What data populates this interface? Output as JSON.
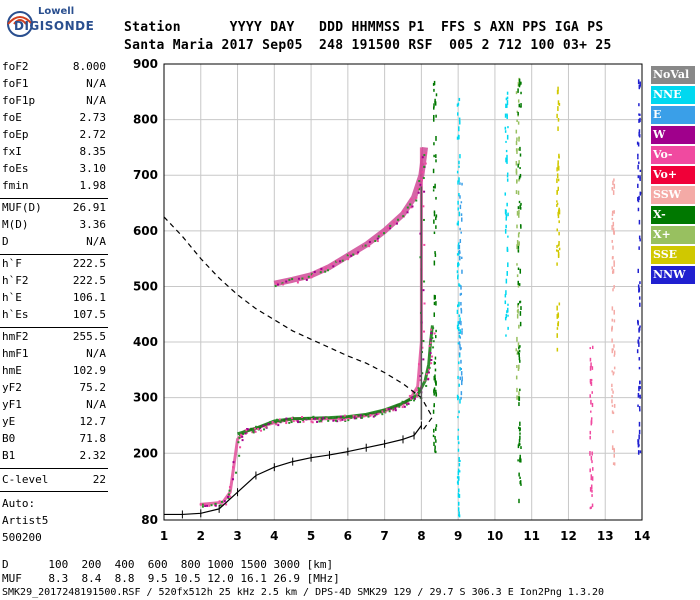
{
  "logo": {
    "brand_top": "Lowell",
    "brand_bottom": "DIGISONDE"
  },
  "header": {
    "row1": "Station      YYYY DAY   DDD HHMMSS P1  FFS S AXN PPS IGA PS",
    "row2": "Santa Maria 2017 Sep05  248 191500 RSF  005 2 712 100 03+ 25"
  },
  "params": {
    "group1": [
      {
        "name": "foF2",
        "value": "8.000"
      },
      {
        "name": "foF1",
        "value": "N/A"
      },
      {
        "name": "foF1p",
        "value": "N/A"
      },
      {
        "name": "foE",
        "value": "2.73"
      },
      {
        "name": "foEp",
        "value": "2.72"
      },
      {
        "name": "fxI",
        "value": "8.35"
      },
      {
        "name": "foEs",
        "value": "3.10"
      },
      {
        "name": "fmin",
        "value": "1.98"
      }
    ],
    "group2": [
      {
        "name": "MUF(D)",
        "value": "26.91"
      },
      {
        "name": "M(D)",
        "value": "3.36"
      },
      {
        "name": "D",
        "value": "N/A"
      }
    ],
    "group3": [
      {
        "name": "h`F",
        "value": "222.5"
      },
      {
        "name": "h`F2",
        "value": "222.5"
      },
      {
        "name": "h`E",
        "value": "106.1"
      },
      {
        "name": "h`Es",
        "value": "107.5"
      }
    ],
    "group4": [
      {
        "name": "hmF2",
        "value": "255.5"
      },
      {
        "name": "hmF1",
        "value": "N/A"
      },
      {
        "name": "hmE",
        "value": "102.9"
      },
      {
        "name": "yF2",
        "value": "75.2"
      },
      {
        "name": "yF1",
        "value": "N/A"
      },
      {
        "name": "yE",
        "value": "12.7"
      },
      {
        "name": "B0",
        "value": "71.8"
      },
      {
        "name": "B1",
        "value": "2.32"
      }
    ],
    "c_level_label": "C-level",
    "c_level_value": "22",
    "auto_lines": [
      "Auto:",
      "Artist5",
      "500200"
    ]
  },
  "legend": [
    {
      "label": "NoVal",
      "color": "#888888",
      "text_color": "#ffffff"
    },
    {
      "label": "NNE",
      "color": "#00d8f0",
      "text_color": "#ffffff"
    },
    {
      "label": "E",
      "color": "#3a9fe8",
      "text_color": "#ffffff"
    },
    {
      "label": "W",
      "color": "#a0008c",
      "text_color": "#ffffff"
    },
    {
      "label": "Vo-",
      "color": "#f04aa0",
      "text_color": "#ffffff"
    },
    {
      "label": "Vo+",
      "color": "#f00038",
      "text_color": "#ffffff"
    },
    {
      "label": "SSW",
      "color": "#f4aaa6",
      "text_color": "#ffffff"
    },
    {
      "label": "X-",
      "color": "#007800",
      "text_color": "#ffffff"
    },
    {
      "label": "X+",
      "color": "#98c060",
      "text_color": "#ffffff"
    },
    {
      "label": "SSE",
      "color": "#d0c800",
      "text_color": "#ffffff"
    },
    {
      "label": "NNW",
      "color": "#2020d0",
      "text_color": "#ffffff"
    }
  ],
  "footer": {
    "d_line": "D      100  200  400  600  800 1000 1500 3000 [km]",
    "muf_line": "MUF    8.3  8.4  8.8  9.5 10.5 12.0 16.1 26.9 [MHz]",
    "file_line": "SMK29_2017248191500.RSF / 520fx512h 25 kHz 2.5 km / DPS-4D SMK29 129 / 29.7 S 306.3 E Ion2Png 1.3.20"
  },
  "chart_data": {
    "type": "scatter",
    "x_ticks": [
      1,
      2,
      3,
      4,
      5,
      6,
      7,
      8,
      9,
      10,
      11,
      12,
      13,
      14
    ],
    "y_ticks": [
      80,
      200,
      300,
      400,
      500,
      600,
      700,
      800,
      900
    ],
    "xlim": [
      1,
      14
    ],
    "ylim": [
      80,
      900
    ],
    "grid": true,
    "legend_position": "right",
    "series": [
      {
        "name": "O-trace profile (h'F)",
        "x": [
          1.98,
          2.3,
          2.6,
          2.8,
          3.0,
          3.2,
          3.5,
          4.0,
          4.5,
          5.0,
          5.5,
          6.0,
          6.5,
          7.0,
          7.4,
          7.7,
          7.9,
          8.0,
          8.0,
          8.0
        ],
        "y": [
          108,
          110,
          112,
          130,
          225,
          240,
          245,
          255,
          262,
          262,
          262,
          264,
          268,
          276,
          286,
          298,
          320,
          400,
          550,
          750
        ]
      },
      {
        "name": "X-trace",
        "x": [
          3.0,
          3.5,
          4.0,
          4.5,
          5.0,
          5.5,
          6.0,
          6.5,
          7.0,
          7.5,
          7.9,
          8.1,
          8.2,
          8.25,
          8.3
        ],
        "y": [
          235,
          245,
          258,
          262,
          263,
          264,
          266,
          270,
          278,
          290,
          305,
          330,
          360,
          400,
          430
        ]
      },
      {
        "name": "Upper F2 echoes",
        "x": [
          4.0,
          4.5,
          5.0,
          5.5,
          6.0,
          6.5,
          7.0,
          7.5,
          7.8,
          8.0,
          8.1
        ],
        "y": [
          505,
          512,
          520,
          535,
          555,
          575,
          600,
          630,
          660,
          700,
          750
        ]
      },
      {
        "name": "True height profile",
        "x": [
          1.0,
          1.5,
          2.0,
          2.5,
          3.0,
          3.5,
          4.0,
          4.5,
          5.0,
          5.5,
          6.0,
          6.5,
          7.0,
          7.5,
          7.8,
          8.0
        ],
        "y": [
          90,
          90,
          92,
          100,
          130,
          160,
          175,
          185,
          192,
          197,
          203,
          210,
          217,
          225,
          232,
          250
        ]
      },
      {
        "name": "Model profile (dashed)",
        "x": [
          1.0,
          1.5,
          2.0,
          2.5,
          3.0,
          3.5,
          4.0,
          4.5,
          5.0,
          5.5,
          6.0,
          6.5,
          7.0,
          7.5,
          8.0,
          8.3,
          8.0
        ],
        "y": [
          625,
          590,
          550,
          515,
          485,
          460,
          440,
          420,
          405,
          390,
          375,
          362,
          345,
          325,
          300,
          265,
          238
        ]
      }
    ],
    "scatter_columns": [
      {
        "x": 9.0,
        "y_from": 90,
        "y_to": 860,
        "color": "#00d8f0"
      },
      {
        "x": 9.05,
        "y_from": 300,
        "y_to": 700,
        "color": "#3a9fe8"
      },
      {
        "x": 10.6,
        "y_from": 300,
        "y_to": 880,
        "color": "#98c060"
      },
      {
        "x": 10.65,
        "y_from": 100,
        "y_to": 880,
        "color": "#007800"
      },
      {
        "x": 10.3,
        "y_from": 400,
        "y_to": 870,
        "color": "#00d8f0"
      },
      {
        "x": 13.2,
        "y_from": 180,
        "y_to": 700,
        "color": "#f4aaa6"
      },
      {
        "x": 12.6,
        "y_from": 100,
        "y_to": 420,
        "color": "#f04aa0"
      },
      {
        "x": 11.7,
        "y_from": 380,
        "y_to": 880,
        "color": "#d0c800"
      },
      {
        "x": 13.9,
        "y_from": 200,
        "y_to": 880,
        "color": "#2020d0"
      },
      {
        "x": 8.35,
        "y_from": 200,
        "y_to": 870,
        "color": "#007800"
      }
    ]
  }
}
